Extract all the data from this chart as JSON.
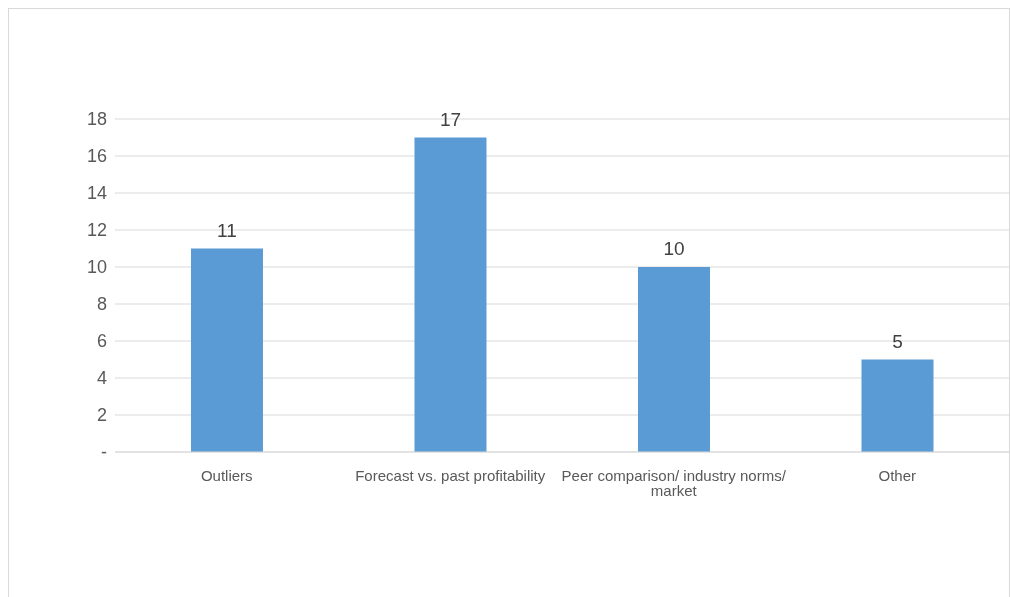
{
  "chart_data": {
    "type": "bar",
    "categories": [
      "Outliers",
      "Forecast vs. past profitability",
      "Peer comparison/ industry norms/ market",
      "Other"
    ],
    "values": [
      11,
      17,
      10,
      5
    ],
    "color": "#5b9bd5",
    "ylim": [
      0,
      18
    ],
    "yticks": [
      {
        "value": 0,
        "label": "-"
      },
      2,
      4,
      6,
      8,
      10,
      12,
      14,
      16,
      18
    ],
    "grid": "y",
    "data_labels": true
  }
}
